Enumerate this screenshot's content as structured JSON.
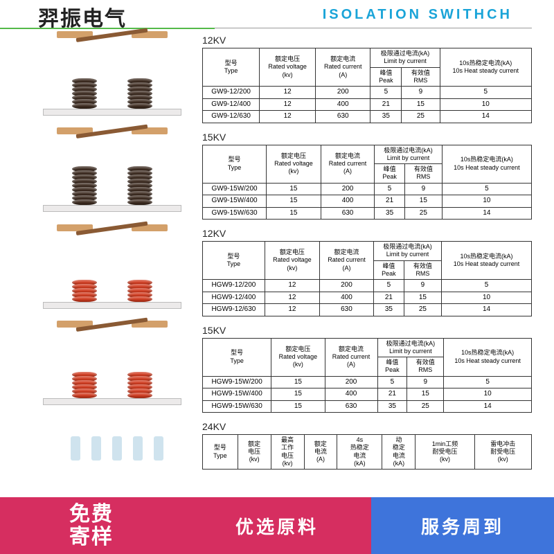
{
  "header": {
    "cn": "羿振电气",
    "en": "ISOLATION SWITHCH"
  },
  "columns": {
    "type": {
      "cn": "型号",
      "en": "Type"
    },
    "voltage": {
      "cn": "额定电压",
      "en": "Rated voltage",
      "unit": "(kv)"
    },
    "current": {
      "cn": "额定电流",
      "en": "Rated current",
      "unit": "(A)"
    },
    "limit": {
      "cn": "极限通过电流(kA)",
      "en": "Limit by current"
    },
    "peak": {
      "cn": "峰值",
      "en": "Peak"
    },
    "rms": {
      "cn": "有效值",
      "en": "RMS"
    },
    "heat": {
      "cn": "10s热稳定电流(kA)",
      "en": "10s Heat steady current"
    }
  },
  "cols24": {
    "type": {
      "cn": "型号",
      "en": "Type"
    },
    "voltage": {
      "cn": "额定",
      "cn2": "电压",
      "unit": "(kv)"
    },
    "maxwork": {
      "cn": "最高",
      "cn2": "工作",
      "cn3": "电压",
      "unit": "(kv)"
    },
    "current": {
      "cn": "额定",
      "cn2": "电流",
      "unit": "(A)"
    },
    "heat4s": {
      "cn": "4s",
      "cn2": "热稳定",
      "cn3": "电流",
      "unit": "(kA)"
    },
    "dyn": {
      "cn": "动",
      "cn2": "稳定",
      "cn3": "电流",
      "unit": "(kA)"
    },
    "onemin": {
      "cn": "1min工频",
      "cn2": "耐受电压",
      "unit": "(kv)"
    },
    "light": {
      "cn": "雷电冲击",
      "cn2": "耐受电压",
      "unit": "(kv)"
    }
  },
  "sections": [
    {
      "kv": "12KV",
      "device_color": "#3c2a1f",
      "discs": 7,
      "rows": [
        {
          "type": "GW9-12/200",
          "v": "12",
          "a": "200",
          "peak": "5",
          "rms": "9",
          "heat": "5"
        },
        {
          "type": "GW9-12/400",
          "v": "12",
          "a": "400",
          "peak": "21",
          "rms": "15",
          "heat": "10"
        },
        {
          "type": "GW9-12/630",
          "v": "12",
          "a": "630",
          "peak": "35",
          "rms": "25",
          "heat": "14"
        }
      ]
    },
    {
      "kv": "15KV",
      "device_color": "#3c2a1f",
      "discs": 9,
      "rows": [
        {
          "type": "GW9-15W/200",
          "v": "15",
          "a": "200",
          "peak": "5",
          "rms": "9",
          "heat": "5"
        },
        {
          "type": "GW9-15W/400",
          "v": "15",
          "a": "400",
          "peak": "21",
          "rms": "15",
          "heat": "10"
        },
        {
          "type": "GW9-15W/630",
          "v": "15",
          "a": "630",
          "peak": "35",
          "rms": "25",
          "heat": "14"
        }
      ]
    },
    {
      "kv": "12KV",
      "device_color": "#d23a1e",
      "discs": 5,
      "rows": [
        {
          "type": "HGW9-12/200",
          "v": "12",
          "a": "200",
          "peak": "5",
          "rms": "9",
          "heat": "5"
        },
        {
          "type": "HGW9-12/400",
          "v": "12",
          "a": "400",
          "peak": "21",
          "rms": "15",
          "heat": "10"
        },
        {
          "type": "HGW9-12/630",
          "v": "12",
          "a": "630",
          "peak": "35",
          "rms": "25",
          "heat": "14"
        }
      ]
    },
    {
      "kv": "15KV",
      "device_color": "#d23a1e",
      "discs": 6,
      "rows": [
        {
          "type": "HGW9-15W/200",
          "v": "15",
          "a": "200",
          "peak": "5",
          "rms": "9",
          "heat": "5"
        },
        {
          "type": "HGW9-15W/400",
          "v": "15",
          "a": "400",
          "peak": "21",
          "rms": "15",
          "heat": "10"
        },
        {
          "type": "HGW9-15W/630",
          "v": "15",
          "a": "630",
          "peak": "35",
          "rms": "25",
          "heat": "14"
        }
      ]
    }
  ],
  "section24": {
    "kv": "24KV"
  },
  "banner": {
    "left1": "免费",
    "left2": "寄样",
    "mid": "优选原料",
    "right": "服务周到"
  }
}
